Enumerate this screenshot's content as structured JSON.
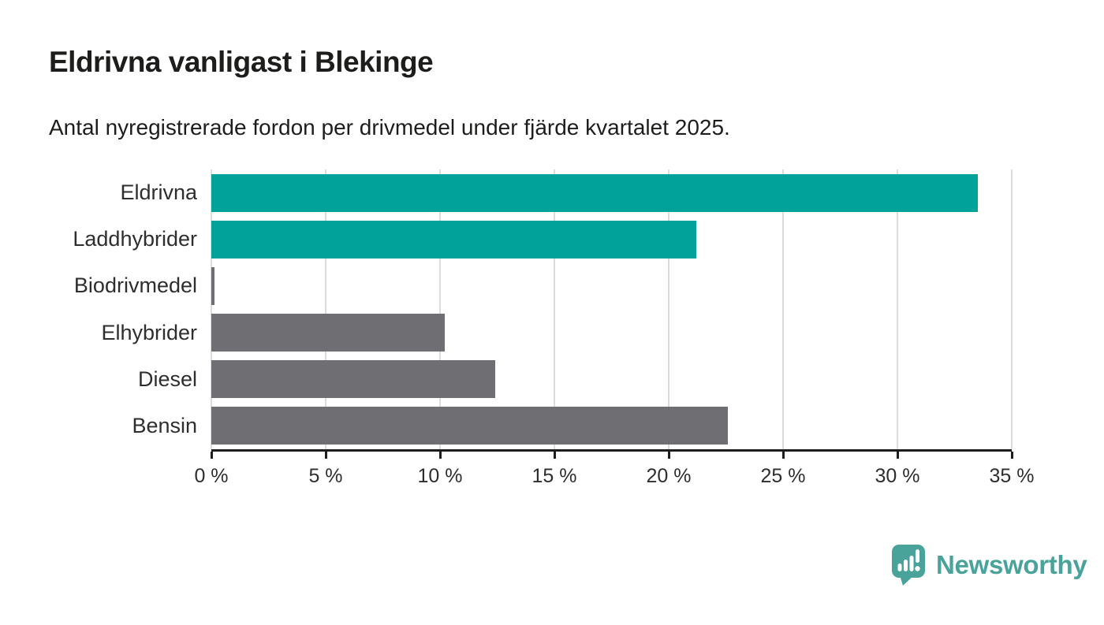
{
  "header": {
    "title": "Eldrivna vanligast i Blekinge",
    "subtitle": "Antal nyregistrerade fordon per drivmedel under fjärde kvartalet 2025."
  },
  "chart_data": {
    "type": "bar",
    "orientation": "horizontal",
    "title": "Eldrivna vanligast i Blekinge",
    "subtitle": "Antal nyregistrerade fordon per drivmedel under fjärde kvartalet 2025.",
    "categories": [
      "Eldrivna",
      "Laddhybrider",
      "Biodrivmedel",
      "Elhybrider",
      "Diesel",
      "Bensin"
    ],
    "values": [
      33.5,
      21.2,
      0.15,
      10.2,
      12.4,
      22.6
    ],
    "unit": "%",
    "bar_colors": [
      "#00a29a",
      "#00a29a",
      "#6e6e73",
      "#6e6e73",
      "#6e6e73",
      "#6e6e73"
    ],
    "xlabel": "",
    "ylabel": "",
    "xlim": [
      0,
      35
    ],
    "x_ticks": [
      0,
      5,
      10,
      15,
      20,
      25,
      30,
      35
    ],
    "x_tick_labels": [
      "0 %",
      "5 %",
      "10 %",
      "15 %",
      "20 %",
      "25 %",
      "30 %",
      "35 %"
    ],
    "grid": "vertical-on",
    "legend": "none"
  },
  "colors": {
    "accent_teal": "#00a29a",
    "bar_gray": "#6e6e73",
    "gridline": "#dcdcdc",
    "axis": "#1d1d1b",
    "text": "#1d1d1b",
    "brand_teal": "#4aa39b"
  },
  "footer": {
    "brand": "Newsworthy",
    "logo_icon": "newsworthy-speech-bubble-bar-chart-icon"
  }
}
